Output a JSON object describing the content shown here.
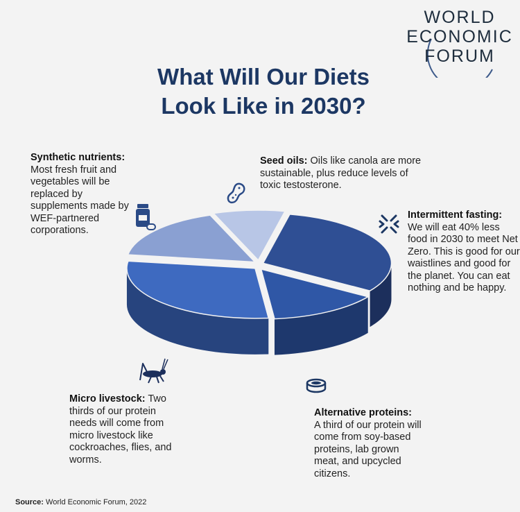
{
  "brand": {
    "line1": "WORLD",
    "line2": "ECONOMIC",
    "line3": "FORUM"
  },
  "title": {
    "line1": "What Will Our Diets",
    "line2": "Look Like in 2030?"
  },
  "notes": {
    "synthetic": {
      "heading": "Synthetic nutrients:",
      "body": "Most fresh fruit and vegetables will be replaced by supplements made by WEF-partnered corporations."
    },
    "seed": {
      "heading": "Seed oils:",
      "body": "Oils like canola are more sustainable, plus reduce levels of toxic testosterone."
    },
    "fasting": {
      "heading": "Intermittent fasting:",
      "body": "We will eat 40% less food in 2030 to meet Net Zero. This is good for our waistlines and good for the planet. You can eat nothing and be happy."
    },
    "micro": {
      "heading": "Micro livestock:",
      "body": "Two thirds of our protein needs will come from micro livestock like cockroaches, flies, and worms."
    },
    "alt": {
      "heading": "Alternative proteins:",
      "body": "A third of our protein will come from soy-based proteins, lab grown meat, and upcycled citizens."
    }
  },
  "source": {
    "label": "Source:",
    "text": "World Economic Forum, 2022"
  },
  "chart_data": {
    "type": "pie",
    "style": "3d-exploded",
    "slices": [
      {
        "category": "Intermittent fasting",
        "value": 31,
        "color": "#2f4f94",
        "side_color": "#1c2f5c"
      },
      {
        "category": "Alternative proteins",
        "value": 14,
        "color": "#2f57a6",
        "side_color": "#1e386d"
      },
      {
        "category": "Micro livestock",
        "value": 29,
        "color": "#3e6ac0",
        "side_color": "#27447e"
      },
      {
        "category": "Synthetic nutrients",
        "value": 17,
        "color": "#8aa0d2",
        "side_color": "#5d70a0"
      },
      {
        "category": "Seed oils",
        "value": 9,
        "color": "#b8c6e6",
        "side_color": "#8797bd"
      }
    ]
  }
}
